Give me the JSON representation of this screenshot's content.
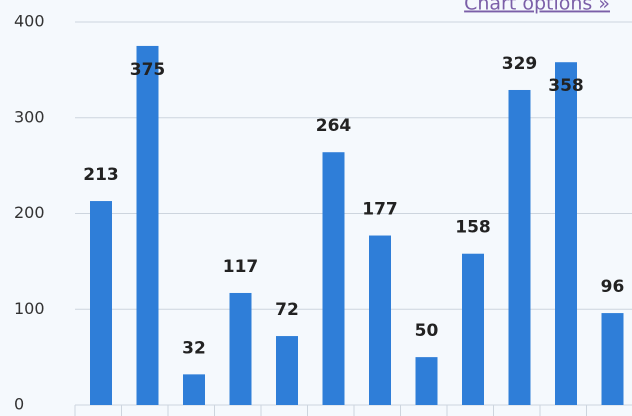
{
  "chart_data": {
    "type": "bar",
    "link": "Chart options »",
    "categories": [
      null,
      null,
      null,
      null,
      null,
      null,
      null,
      null,
      null,
      null,
      null,
      null
    ],
    "values": [
      213,
      375,
      32,
      117,
      72,
      264,
      177,
      50,
      158,
      329,
      358,
      96
    ],
    "color": "#2f7ed8",
    "ylim": [
      0,
      400
    ],
    "yticks": [
      0,
      100,
      200,
      300,
      400
    ],
    "grid": true
  }
}
